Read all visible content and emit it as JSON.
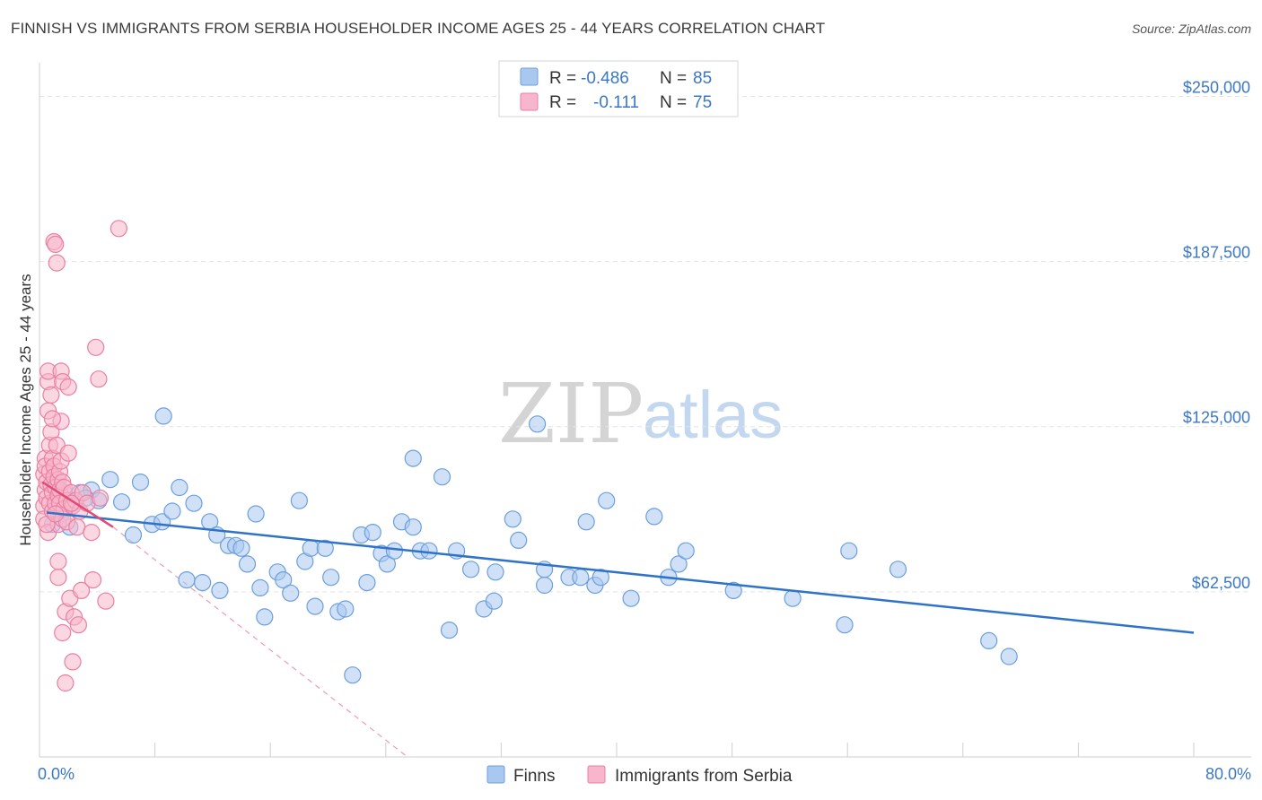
{
  "title": "FINNISH VS IMMIGRANTS FROM SERBIA HOUSEHOLDER INCOME AGES 25 - 44 YEARS CORRELATION CHART",
  "source": "Source: ZipAtlas.com",
  "watermark": {
    "zip": "ZIP",
    "atlas": "atlas"
  },
  "colors": {
    "blue_fill": "#a9c8f0",
    "blue_stroke": "#6b9fdc",
    "blue_line": "#2f73c9",
    "pink_fill": "#f7b6cb",
    "pink_stroke": "#ea7fa2",
    "pink_line": "#e0497a",
    "grid": "#e3e3e3",
    "tick_text": "#3b78c4"
  },
  "legend": {
    "rows": [
      {
        "r_label": "R =",
        "r_value": "-0.486",
        "n_label": "N =",
        "n_value": "85"
      },
      {
        "r_label": "R =",
        "r_value": "-0.111",
        "n_label": "N =",
        "n_value": "75"
      }
    ]
  },
  "chart_data": {
    "type": "scatter",
    "title": "FINNISH VS IMMIGRANTS FROM SERBIA HOUSEHOLDER INCOME AGES 25 - 44 YEARS CORRELATION CHART",
    "xlabel": "",
    "ylabel": "Householder Income Ages 25 - 44 years",
    "xlim": [
      0,
      80
    ],
    "ylim": [
      0,
      260000
    ],
    "x_tick_labels": [
      "0.0%",
      "80.0%"
    ],
    "y_ticks": [
      62500,
      125000,
      187500,
      250000
    ],
    "y_tick_labels": [
      "$62,500",
      "$125,000",
      "$187,500",
      "$250,000"
    ],
    "grid": true,
    "legend_position": "top-center",
    "series": [
      {
        "name": "Finns",
        "r": -0.486,
        "n": 85,
        "trend": {
          "x": [
            0.5,
            80
          ],
          "y": [
            92500,
            47000
          ]
        },
        "points": [
          [
            1.2,
            103000
          ],
          [
            1.7,
            100000
          ],
          [
            2.1,
            87000
          ],
          [
            2.8,
            100000
          ],
          [
            3.6,
            101000
          ],
          [
            4.1,
            97000
          ],
          [
            4.9,
            105000
          ],
          [
            5.7,
            96500
          ],
          [
            6.5,
            84000
          ],
          [
            7.0,
            104000
          ],
          [
            7.8,
            88000
          ],
          [
            8.5,
            89000
          ],
          [
            8.6,
            129000
          ],
          [
            9.2,
            93000
          ],
          [
            9.7,
            102000
          ],
          [
            10.2,
            67000
          ],
          [
            10.7,
            96000
          ],
          [
            11.3,
            66000
          ],
          [
            11.8,
            89000
          ],
          [
            12.3,
            84000
          ],
          [
            12.5,
            63000
          ],
          [
            13.1,
            80000
          ],
          [
            13.6,
            80000
          ],
          [
            14.0,
            79000
          ],
          [
            14.4,
            73000
          ],
          [
            15.0,
            92000
          ],
          [
            15.3,
            64000
          ],
          [
            15.6,
            53000
          ],
          [
            16.5,
            70000
          ],
          [
            16.9,
            67000
          ],
          [
            17.4,
            62000
          ],
          [
            18.0,
            97000
          ],
          [
            18.4,
            74000
          ],
          [
            18.8,
            79000
          ],
          [
            19.1,
            57000
          ],
          [
            19.8,
            79000
          ],
          [
            20.2,
            68000
          ],
          [
            20.7,
            55000
          ],
          [
            21.2,
            56000
          ],
          [
            21.7,
            31000
          ],
          [
            22.3,
            84000
          ],
          [
            22.7,
            66000
          ],
          [
            23.1,
            85000
          ],
          [
            23.7,
            77000
          ],
          [
            24.1,
            73000
          ],
          [
            24.6,
            78000
          ],
          [
            25.1,
            89000
          ],
          [
            25.9,
            113000
          ],
          [
            25.9,
            87000
          ],
          [
            26.4,
            78000
          ],
          [
            27.0,
            78000
          ],
          [
            27.9,
            106000
          ],
          [
            28.4,
            48000
          ],
          [
            28.9,
            78000
          ],
          [
            29.9,
            71000
          ],
          [
            30.8,
            56000
          ],
          [
            31.5,
            59000
          ],
          [
            31.6,
            70000
          ],
          [
            32.8,
            90000
          ],
          [
            33.2,
            82000
          ],
          [
            34.5,
            126000
          ],
          [
            35.0,
            65000
          ],
          [
            35.0,
            71000
          ],
          [
            36.7,
            68000
          ],
          [
            37.5,
            68000
          ],
          [
            37.9,
            89000
          ],
          [
            38.5,
            65000
          ],
          [
            38.9,
            68000
          ],
          [
            39.3,
            97000
          ],
          [
            41.0,
            60000
          ],
          [
            42.6,
            91000
          ],
          [
            43.6,
            68000
          ],
          [
            44.3,
            73000
          ],
          [
            44.8,
            78000
          ],
          [
            48.1,
            63000
          ],
          [
            52.2,
            60000
          ],
          [
            55.8,
            50000
          ],
          [
            56.1,
            78000
          ],
          [
            59.5,
            71000
          ],
          [
            65.8,
            44000
          ],
          [
            67.2,
            38000
          ],
          [
            1.5,
            92000
          ],
          [
            2.3,
            95000
          ],
          [
            3.2,
            98000
          ],
          [
            0.9,
            88000
          ]
        ]
      },
      {
        "name": "Immigrants from Serbia",
        "r": -0.111,
        "n": 75,
        "trend": {
          "x": [
            0.2,
            5.1
          ],
          "y": [
            104000,
            87000
          ]
        },
        "extrapolation": {
          "x": [
            5.1,
            25.5
          ],
          "y": [
            87000,
            0
          ]
        },
        "points": [
          [
            0.3,
            107000
          ],
          [
            0.3,
            95000
          ],
          [
            0.3,
            90000
          ],
          [
            0.4,
            101000
          ],
          [
            0.4,
            113000
          ],
          [
            0.4,
            110000
          ],
          [
            0.5,
            98000
          ],
          [
            0.5,
            104000
          ],
          [
            0.6,
            131000
          ],
          [
            0.6,
            142000
          ],
          [
            0.6,
            146000
          ],
          [
            0.6,
            85000
          ],
          [
            0.7,
            96000
          ],
          [
            0.7,
            108000
          ],
          [
            0.7,
            118000
          ],
          [
            0.8,
            137000
          ],
          [
            0.8,
            123000
          ],
          [
            0.8,
            103000
          ],
          [
            0.9,
            100000
          ],
          [
            0.9,
            113000
          ],
          [
            0.9,
            93000
          ],
          [
            1.0,
            195000
          ],
          [
            1.0,
            110000
          ],
          [
            1.0,
            106000
          ],
          [
            1.1,
            102000
          ],
          [
            1.1,
            96000
          ],
          [
            1.1,
            194000
          ],
          [
            1.2,
            118000
          ],
          [
            1.2,
            187000
          ],
          [
            1.3,
            105000
          ],
          [
            1.3,
            99000
          ],
          [
            1.3,
            88000
          ],
          [
            1.3,
            68000
          ],
          [
            1.3,
            74000
          ],
          [
            1.4,
            108000
          ],
          [
            1.4,
            101000
          ],
          [
            1.4,
            96000
          ],
          [
            1.5,
            112000
          ],
          [
            1.5,
            146000
          ],
          [
            1.5,
            127000
          ],
          [
            1.6,
            142000
          ],
          [
            1.6,
            104000
          ],
          [
            1.6,
            90000
          ],
          [
            1.6,
            47000
          ],
          [
            1.7,
            102000
          ],
          [
            1.7,
            94000
          ],
          [
            1.8,
            55000
          ],
          [
            1.8,
            28000
          ],
          [
            1.9,
            97000
          ],
          [
            1.9,
            89000
          ],
          [
            2.0,
            115000
          ],
          [
            2.0,
            140000
          ],
          [
            2.1,
            60000
          ],
          [
            2.2,
            100000
          ],
          [
            2.3,
            95000
          ],
          [
            2.3,
            36000
          ],
          [
            2.4,
            53000
          ],
          [
            2.5,
            97000
          ],
          [
            2.6,
            87000
          ],
          [
            2.7,
            50000
          ],
          [
            2.8,
            93000
          ],
          [
            2.9,
            63000
          ],
          [
            3.0,
            100000
          ],
          [
            3.3,
            96000
          ],
          [
            3.6,
            85000
          ],
          [
            3.7,
            67000
          ],
          [
            3.9,
            155000
          ],
          [
            4.1,
            143000
          ],
          [
            4.2,
            98000
          ],
          [
            4.6,
            59000
          ],
          [
            5.5,
            200000
          ],
          [
            0.5,
            88000
          ],
          [
            0.9,
            128000
          ],
          [
            1.1,
            92000
          ],
          [
            2.2,
            96000
          ]
        ]
      }
    ]
  }
}
